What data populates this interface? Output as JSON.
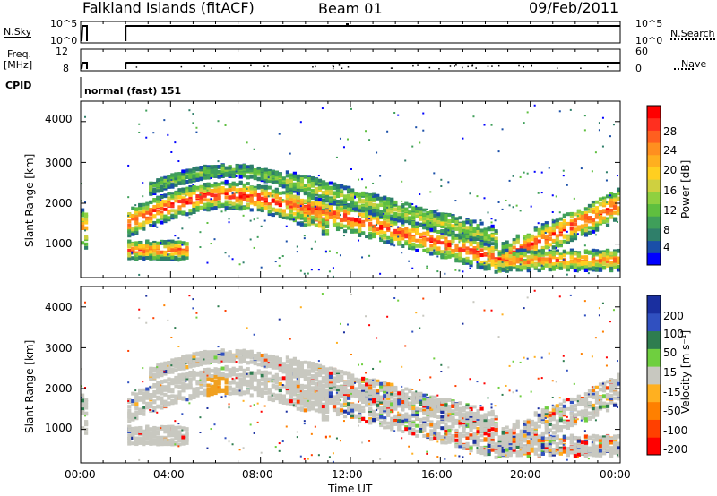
{
  "header": {
    "station": "Falkland Islands (fitACF)",
    "beam": "Beam 01",
    "date": "09/Feb/2011"
  },
  "aux_panels": {
    "nsky_label": "N.Sky",
    "nsearch_label": "N.Search",
    "nsky_ticks": [
      "10^5",
      "10^0"
    ],
    "nsearch_ticks": [
      "10^5",
      "10^0"
    ],
    "freq_label_1": "Freq.",
    "freq_label_2": "[MHz]",
    "freq_ticks": [
      "12",
      "8"
    ],
    "nave_label": "Nave",
    "nave_ticks": [
      "60",
      "0"
    ],
    "cpid_label": "CPID",
    "cpid_value": "normal (fast) 151"
  },
  "chart_data": [
    {
      "type": "heatmap",
      "title": "",
      "xlabel": "",
      "ylabel": "Slant Range [km]",
      "xlim_hours": [
        0,
        24
      ],
      "ylim_km": [
        180,
        4500
      ],
      "yticks": [
        "4000",
        "3000",
        "2000",
        "1000"
      ],
      "colorbar": {
        "label": "Power [dB]",
        "ticks": [
          "28",
          "24",
          "20",
          "16",
          "12",
          "8",
          "4"
        ],
        "colors": [
          "#0000ff",
          "#1a4fa8",
          "#2f7f6a",
          "#3f9f5a",
          "#5fbf3f",
          "#8fd040",
          "#cfd040",
          "#ffcf20",
          "#ffaf1f",
          "#ff8f1f",
          "#ff5f1f",
          "#ff2f1f",
          "#ff0000"
        ]
      },
      "features": [
        {
          "name": "upper band",
          "start_hour": 2,
          "end_hour": 11,
          "range_km": [
            1500,
            2500
          ]
        },
        {
          "name": "lower band",
          "start_hour": 2,
          "end_hour": 4.5,
          "range_km": [
            600,
            1100
          ]
        },
        {
          "name": "descending band",
          "start_hour": 11,
          "end_hour": 18,
          "range_km": [
            500,
            2200
          ]
        },
        {
          "name": "night band",
          "start_hour": 18,
          "end_hour": 24,
          "range_km": [
            400,
            2000
          ]
        }
      ]
    },
    {
      "type": "heatmap",
      "title": "",
      "xlabel": "Time UT",
      "ylabel": "Slant Range [km]",
      "xlim_hours": [
        0,
        24
      ],
      "ylim_km": [
        180,
        4500
      ],
      "xticks": [
        "00:00",
        "04:00",
        "08:00",
        "12:00",
        "16:00",
        "20:00",
        "00:00"
      ],
      "yticks": [
        "4000",
        "3000",
        "2000",
        "1000"
      ],
      "colorbar": {
        "label": "Velocity [m s⁻¹]",
        "ticks": [
          "200",
          "100",
          "50",
          "15",
          "-15",
          "-50",
          "-100",
          "-200"
        ],
        "colors": [
          "#1a2f9f",
          "#3050c0",
          "#2e7d4f",
          "#6fcf3f",
          "#c8c8c0",
          "#ffb020",
          "#ff8000",
          "#ff4000",
          "#ff0000"
        ]
      }
    }
  ],
  "colors": {
    "ground_scatter": "#c8c8c0",
    "background": "#ffffff"
  }
}
